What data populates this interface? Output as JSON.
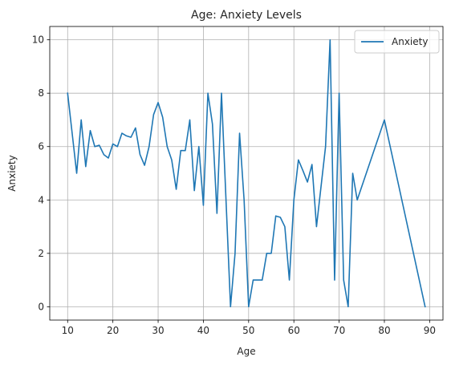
{
  "chart_data": {
    "type": "line",
    "title": "Age: Anxiety Levels",
    "xlabel": "Age",
    "ylabel": "Anxiety",
    "xlim": [
      6.05,
      92.95
    ],
    "ylim": [
      -0.5,
      10.5
    ],
    "xticks": [
      10,
      20,
      30,
      40,
      50,
      60,
      70,
      80,
      90
    ],
    "yticks": [
      0,
      2,
      4,
      6,
      8,
      10
    ],
    "grid": true,
    "legend": {
      "position": "top-right",
      "entries": [
        "Anxiety"
      ]
    },
    "series": [
      {
        "name": "Anxiety",
        "color": "#1f77b4",
        "x": [
          10,
          11,
          12,
          13,
          14,
          15,
          16,
          17,
          18,
          19,
          20,
          21,
          22,
          23,
          24,
          25,
          26,
          27,
          28,
          29,
          30,
          31,
          32,
          33,
          34,
          35,
          36,
          37,
          38,
          39,
          40,
          41,
          42,
          43,
          44,
          45,
          46,
          47,
          48,
          49,
          50,
          51,
          52,
          53,
          54,
          55,
          56,
          57,
          58,
          59,
          60,
          61,
          62,
          63,
          64,
          65,
          66,
          67,
          68,
          69,
          70,
          71,
          72,
          73,
          74,
          80,
          89
        ],
        "y": [
          8,
          6.5,
          5,
          7,
          5.25,
          6.6,
          6,
          6.05,
          5.7,
          5.57,
          6.1,
          6,
          6.5,
          6.4,
          6.35,
          6.7,
          5.7,
          5.3,
          6,
          7.2,
          7.65,
          7.1,
          6,
          5.5,
          4.4,
          5.85,
          5.85,
          7,
          4.35,
          6,
          3.8,
          8,
          6.85,
          3.5,
          8,
          4,
          0,
          2,
          6.5,
          4,
          0,
          1,
          1,
          1,
          2,
          2,
          3.4,
          3.35,
          3,
          1,
          4,
          5.5,
          5.1,
          4.67,
          5.33,
          3,
          4.5,
          6,
          10,
          1,
          8,
          1,
          0,
          5,
          4,
          7,
          0
        ]
      }
    ]
  }
}
